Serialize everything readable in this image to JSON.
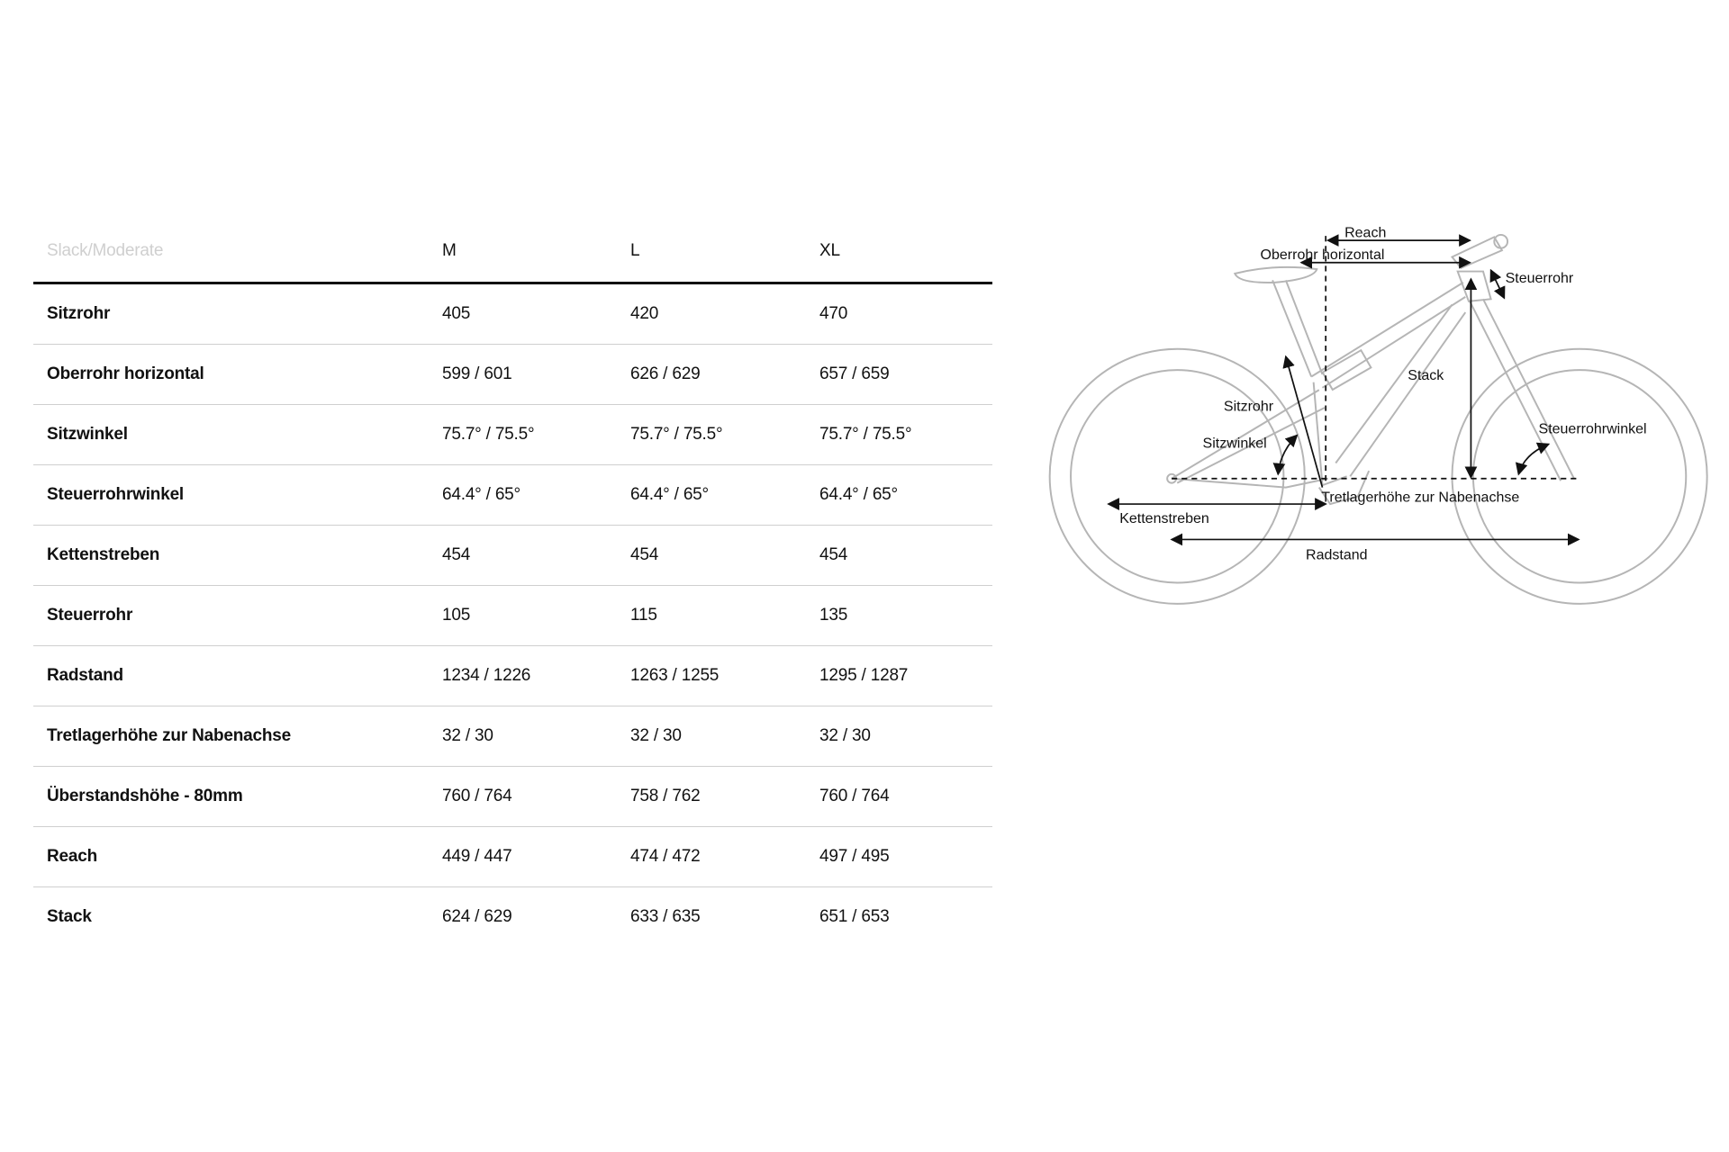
{
  "table": {
    "header": {
      "label": "Slack/Moderate",
      "sizes": [
        "M",
        "L",
        "XL"
      ]
    },
    "rows": [
      {
        "label": "Sitzrohr",
        "values": [
          "405",
          "420",
          "470"
        ]
      },
      {
        "label": "Oberrohr horizontal",
        "values": [
          "599 / 601",
          "626 / 629",
          "657 / 659"
        ]
      },
      {
        "label": "Sitzwinkel",
        "values": [
          "75.7° / 75.5°",
          "75.7° / 75.5°",
          "75.7° / 75.5°"
        ]
      },
      {
        "label": "Steuerrohrwinkel",
        "values": [
          "64.4° / 65°",
          "64.4° / 65°",
          "64.4° / 65°"
        ]
      },
      {
        "label": "Kettenstreben",
        "values": [
          "454",
          "454",
          "454"
        ]
      },
      {
        "label": "Steuerrohr",
        "values": [
          "105",
          "115",
          "135"
        ]
      },
      {
        "label": "Radstand",
        "values": [
          "1234 / 1226",
          "1263 / 1255",
          "1295 / 1287"
        ]
      },
      {
        "label": "Tretlagerhöhe zur Nabenachse",
        "values": [
          "32 / 30",
          "32 / 30",
          "32 / 30"
        ]
      },
      {
        "label": "Überstandshöhe - 80mm",
        "values": [
          "760 / 764",
          "758 / 762",
          "760 / 764"
        ]
      },
      {
        "label": "Reach",
        "values": [
          "449 / 447",
          "474 / 472",
          "497 / 495"
        ]
      },
      {
        "label": "Stack",
        "values": [
          "624 / 629",
          "633 / 635",
          "651 / 653"
        ]
      }
    ]
  },
  "diagram": {
    "labels": {
      "reach": "Reach",
      "oberrohr": "Oberrohr horizontal",
      "steuerrohr": "Steuerrohr",
      "stack": "Stack",
      "sitzrohr": "Sitzrohr",
      "sitzwinkel": "Sitzwinkel",
      "steuerrohrwinkel": "Steuerrohrwinkel",
      "tretlager": "Tretlagerhöhe zur Nabenachse",
      "kettenstreben": "Kettenstreben",
      "radstand": "Radstand"
    },
    "colors": {
      "frame": "#b5b5b5",
      "arrows": "#111111"
    }
  }
}
